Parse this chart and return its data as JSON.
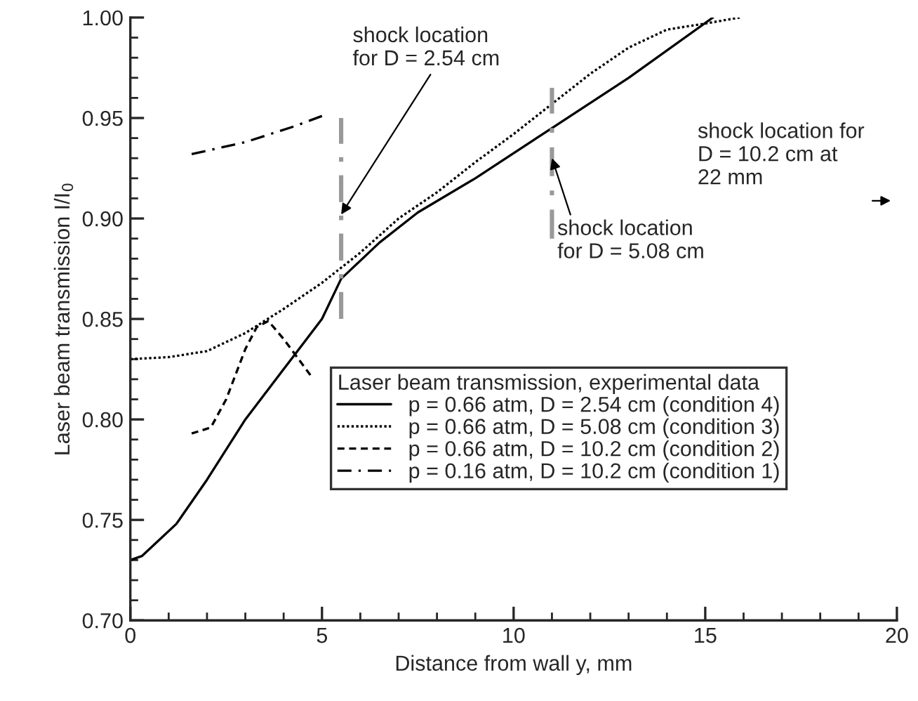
{
  "chart_data": {
    "type": "line",
    "xlabel": "Distance from wall y, mm",
    "ylabel": "Laser beam transmission I/I$_{0}$",
    "legend_title": "Laser beam transmission, experimental data",
    "legend": "bottom right",
    "xlim": [
      0,
      20
    ],
    "xticks": [
      0,
      5,
      10,
      15,
      20
    ],
    "ylim": [
      0.7,
      1.0
    ],
    "yticks": [
      {
        "value": 0.7,
        "label": "0.70"
      },
      {
        "value": 0.75,
        "label": "0.75"
      },
      {
        "value": 0.8,
        "label": "0.80"
      },
      {
        "value": 0.85,
        "label": "0.85"
      },
      {
        "value": 0.9,
        "label": "0.90"
      },
      {
        "value": 0.95,
        "label": "0.95"
      },
      {
        "value": 1.0,
        "label": "1.00"
      }
    ],
    "grid": false,
    "marker": "none",
    "series": [
      {
        "name": "p = 0.66 atm, D = 2.54 cm (condition 4)",
        "color": "#000000",
        "line_style": "solid",
        "x": [
          0,
          0.3,
          1.2,
          2,
          3,
          4,
          5,
          5.5,
          6.5,
          7.5,
          9,
          11,
          13,
          15.2
        ],
        "values": [
          0.73,
          0.732,
          0.748,
          0.77,
          0.8,
          0.825,
          0.85,
          0.87,
          0.888,
          0.903,
          0.92,
          0.945,
          0.97,
          1.0
        ]
      },
      {
        "name": "p = 0.66 atm, D = 5.08 cm (condition 3)",
        "color": "#000000",
        "line_style": "dotted",
        "x": [
          0,
          1,
          2,
          3,
          4,
          5,
          6,
          7,
          8,
          9,
          10,
          11,
          12,
          13,
          14,
          15,
          15.9
        ],
        "values": [
          0.83,
          0.831,
          0.834,
          0.843,
          0.855,
          0.868,
          0.883,
          0.9,
          0.913,
          0.928,
          0.942,
          0.957,
          0.972,
          0.985,
          0.994,
          0.997,
          1.0
        ]
      },
      {
        "name": "p = 0.66 atm, D = 10.2 cm (condition 2)",
        "color": "#000000",
        "line_style": "dashed",
        "x": [
          1.6,
          2.1,
          2.5,
          3.0,
          3.3,
          3.6,
          4.0,
          4.7
        ],
        "values": [
          0.793,
          0.796,
          0.81,
          0.835,
          0.846,
          0.849,
          0.84,
          0.822
        ]
      },
      {
        "name": "p = 0.16 atm, D = 10.2 cm (condition 1)",
        "color": "#000000",
        "line_style": "dashdot",
        "x": [
          1.6,
          3,
          4.3,
          5.0
        ],
        "values": [
          0.932,
          0.938,
          0.946,
          0.951
        ]
      },
      {
        "color": "#999999",
        "line_style": "dashdot",
        "x": [
          5.5,
          5.5
        ],
        "values": [
          0.85,
          0.95
        ]
      },
      {
        "color": "#999999",
        "line_style": "dashdot",
        "x": [
          11,
          11
        ],
        "values": [
          0.89,
          0.965
        ]
      }
    ],
    "annotations": [
      {
        "text": "shock location\nfor D = 2.54 cm",
        "x": 5.5,
        "y": 0.902
      },
      {
        "text": "shock location\nfor D = 5.08 cm",
        "x": 11,
        "y": 0.93
      },
      "shock location for\nD = 10.2 cm at\n22 mm"
    ]
  }
}
